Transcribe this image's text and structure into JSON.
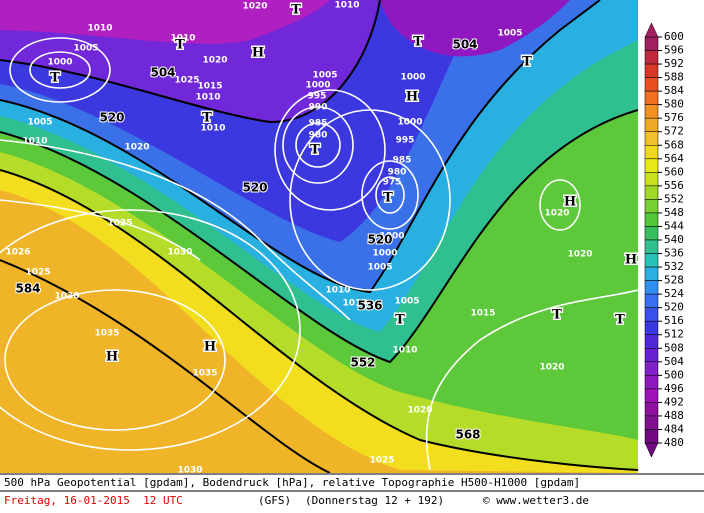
{
  "colorbar": {
    "ticks": [
      600,
      596,
      592,
      588,
      584,
      580,
      576,
      572,
      568,
      564,
      560,
      556,
      552,
      548,
      544,
      540,
      536,
      532,
      528,
      524,
      520,
      516,
      512,
      508,
      504,
      500,
      496,
      492,
      488,
      484,
      480
    ],
    "colors": [
      "#a02060",
      "#c02840",
      "#d83828",
      "#e85020",
      "#f07020",
      "#f09020",
      "#f0a828",
      "#f0c030",
      "#f0d820",
      "#e8e818",
      "#c8e020",
      "#a0d828",
      "#78d030",
      "#50c838",
      "#38c060",
      "#30c090",
      "#28c0b8",
      "#28b0e0",
      "#3090f0",
      "#3870f0",
      "#3a50e8",
      "#3c38e0",
      "#5028d8",
      "#6820d0",
      "#8020c8",
      "#9018c0",
      "#a010b8",
      "#9010a0",
      "#801090",
      "#700880"
    ]
  },
  "height_labels": [
    "504",
    "504",
    "520",
    "520",
    "520",
    "536",
    "552",
    "568",
    "584"
  ],
  "pressure_centers": [
    "T",
    "T",
    "H",
    "T",
    "T",
    "T",
    "T",
    "H",
    "T",
    "T",
    "H",
    "H",
    "T",
    "T",
    "T",
    "H",
    "H"
  ],
  "isobar_labels": [
    "1010",
    "1005",
    "1000",
    "1010",
    "1020",
    "1010",
    "1005",
    "1025",
    "1020",
    "1015",
    "1010",
    "1010",
    "1005",
    "1010",
    "1020",
    "1005",
    "1000",
    "995",
    "990",
    "985",
    "980",
    "1000",
    "1000",
    "995",
    "985",
    "980",
    "975",
    "1025",
    "1030",
    "1020",
    "1020",
    "1025",
    "1026",
    "1030",
    "1000",
    "1000",
    "1005",
    "1010",
    "1015",
    "1005",
    "1015",
    "1010",
    "1035",
    "1035",
    "1020",
    "1020",
    "1025",
    "1030"
  ],
  "footer": {
    "description": "500 hPa Geopotential [gpdam], Bodendruck [hPa], relative Topographie H500-H1000 [gpdam]",
    "date": "Freitag, 16-01-2015  12 UTC",
    "model": "(GFS)",
    "run": "(Donnerstag 12 + 192)",
    "source": "© www.wetter3.de"
  }
}
